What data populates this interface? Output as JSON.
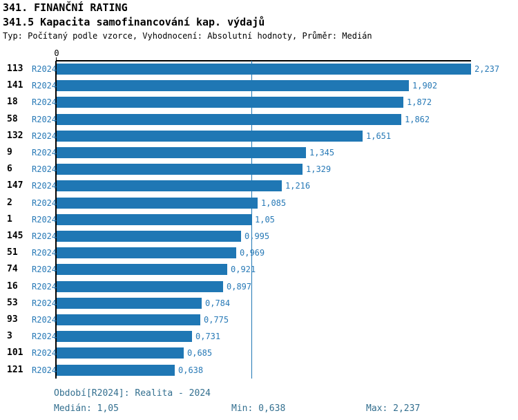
{
  "header": {
    "title": "341. FINANČNÍ RATING",
    "subtitle": "341.5 Kapacita samofinancování kap. výdajů",
    "meta": "Typ: Počítaný podle vzorce, Vyhodnocení: Absolutní hodnoty, Průměr: Medián"
  },
  "colors": {
    "bar": "#1F77B4",
    "label_blue": "#2779B6",
    "footer_blue": "#336F8F",
    "axis_black": "#000000",
    "median_line": "#1F77B4"
  },
  "chart_data": {
    "type": "bar",
    "orientation": "horizontal",
    "title": "341.5 Kapacita samofinancování kap. výdajů",
    "categories": [
      "113",
      "141",
      "18",
      "58",
      "132",
      "9",
      "6",
      "147",
      "2",
      "1",
      "145",
      "51",
      "74",
      "16",
      "53",
      "93",
      "3",
      "101",
      "121"
    ],
    "period": "R2024",
    "values": [
      2.237,
      1.902,
      1.872,
      1.862,
      1.651,
      1.345,
      1.329,
      1.216,
      1.085,
      1.05,
      0.995,
      0.969,
      0.921,
      0.897,
      0.784,
      0.775,
      0.731,
      0.685,
      0.638
    ],
    "value_labels": [
      "2,237",
      "1,902",
      "1,872",
      "1,862",
      "1,651",
      "1,345",
      "1,329",
      "1,216",
      "1,085",
      "1,05",
      "0,995",
      "0,969",
      "0,921",
      "0,897",
      "0,784",
      "0,775",
      "0,731",
      "0,685",
      "0,638"
    ],
    "xlim": [
      0,
      2.237
    ],
    "tick_labels": {
      "zero": "0"
    },
    "median": 1.05,
    "grid": false,
    "legend": false
  },
  "footer": {
    "period_line": "Období[R2024]: Realita - 2024",
    "median_label": "Medián: 1,05",
    "min_label": "Min: 0,638",
    "max_label": "Max: 2,237"
  }
}
